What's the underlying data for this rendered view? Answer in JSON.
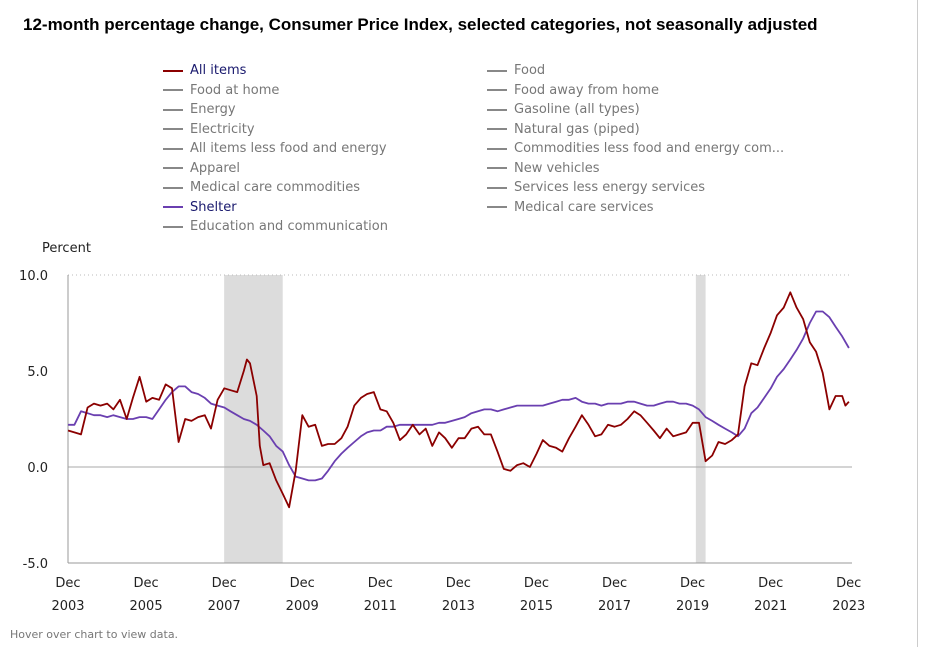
{
  "title": "12-month percentage change, Consumer Price Index, selected categories, not seasonally adjusted",
  "footer": "Hover over chart to view data.",
  "colors": {
    "all_items": "#8b0000",
    "shelter": "#6a3fb0",
    "inactive": "#888888",
    "recession": "#dcdcdc"
  },
  "legend": {
    "left": [
      {
        "label": "All items",
        "active": true,
        "color": "#8b0000"
      },
      {
        "label": "Food at home",
        "active": false
      },
      {
        "label": "Energy",
        "active": false
      },
      {
        "label": "Electricity",
        "active": false
      },
      {
        "label": "All items less food and energy",
        "active": false
      },
      {
        "label": "Apparel",
        "active": false
      },
      {
        "label": "Medical care commodities",
        "active": false
      },
      {
        "label": "Shelter",
        "active": true,
        "color": "#6a3fb0"
      },
      {
        "label": "Education and communication",
        "active": false
      }
    ],
    "right": [
      {
        "label": "Food",
        "active": false
      },
      {
        "label": "Food away from home",
        "active": false
      },
      {
        "label": "Gasoline (all types)",
        "active": false
      },
      {
        "label": "Natural gas (piped)",
        "active": false
      },
      {
        "label": "Commodities less food and energy com...",
        "active": false
      },
      {
        "label": "New vehicles",
        "active": false
      },
      {
        "label": "Services less energy services",
        "active": false
      },
      {
        "label": "Medical care services",
        "active": false
      }
    ]
  },
  "chart_data": {
    "type": "line",
    "title": "12-month percentage change, Consumer Price Index, selected categories, not seasonally adjusted",
    "ylabel": "Percent",
    "ylim": [
      -5.0,
      10.0
    ],
    "yticks": [
      "10.0",
      "5.0",
      "0.0",
      "-5.0"
    ],
    "xlim": [
      2003.917,
      2024.0
    ],
    "xticks": [
      {
        "month": "Dec",
        "year": "2003"
      },
      {
        "month": "Dec",
        "year": "2005"
      },
      {
        "month": "Dec",
        "year": "2007"
      },
      {
        "month": "Dec",
        "year": "2009"
      },
      {
        "month": "Dec",
        "year": "2011"
      },
      {
        "month": "Dec",
        "year": "2013"
      },
      {
        "month": "Dec",
        "year": "2015"
      },
      {
        "month": "Dec",
        "year": "2017"
      },
      {
        "month": "Dec",
        "year": "2019"
      },
      {
        "month": "Dec",
        "year": "2021"
      },
      {
        "month": "Dec",
        "year": "2023"
      }
    ],
    "recessions": [
      [
        2007.917,
        2009.417
      ],
      [
        2020.0,
        2020.25
      ]
    ],
    "series": [
      {
        "name": "All items",
        "color": "#8b0000",
        "points": [
          [
            2003.92,
            1.9
          ],
          [
            2004.08,
            1.8
          ],
          [
            2004.25,
            1.7
          ],
          [
            2004.42,
            3.1
          ],
          [
            2004.58,
            3.3
          ],
          [
            2004.75,
            3.2
          ],
          [
            2004.92,
            3.3
          ],
          [
            2005.08,
            3.0
          ],
          [
            2005.25,
            3.5
          ],
          [
            2005.42,
            2.5
          ],
          [
            2005.58,
            3.6
          ],
          [
            2005.75,
            4.7
          ],
          [
            2005.92,
            3.4
          ],
          [
            2006.08,
            3.6
          ],
          [
            2006.25,
            3.5
          ],
          [
            2006.42,
            4.3
          ],
          [
            2006.58,
            4.1
          ],
          [
            2006.75,
            1.3
          ],
          [
            2006.92,
            2.5
          ],
          [
            2007.08,
            2.4
          ],
          [
            2007.25,
            2.6
          ],
          [
            2007.42,
            2.7
          ],
          [
            2007.58,
            2.0
          ],
          [
            2007.75,
            3.5
          ],
          [
            2007.92,
            4.1
          ],
          [
            2008.08,
            4.0
          ],
          [
            2008.25,
            3.9
          ],
          [
            2008.42,
            5.0
          ],
          [
            2008.5,
            5.6
          ],
          [
            2008.58,
            5.4
          ],
          [
            2008.75,
            3.7
          ],
          [
            2008.83,
            1.1
          ],
          [
            2008.92,
            0.1
          ],
          [
            2009.08,
            0.2
          ],
          [
            2009.25,
            -0.7
          ],
          [
            2009.42,
            -1.4
          ],
          [
            2009.58,
            -2.1
          ],
          [
            2009.75,
            -0.2
          ],
          [
            2009.92,
            2.7
          ],
          [
            2010.08,
            2.1
          ],
          [
            2010.25,
            2.2
          ],
          [
            2010.42,
            1.1
          ],
          [
            2010.58,
            1.2
          ],
          [
            2010.75,
            1.2
          ],
          [
            2010.92,
            1.5
          ],
          [
            2011.08,
            2.1
          ],
          [
            2011.25,
            3.2
          ],
          [
            2011.42,
            3.6
          ],
          [
            2011.58,
            3.8
          ],
          [
            2011.75,
            3.9
          ],
          [
            2011.92,
            3.0
          ],
          [
            2012.08,
            2.9
          ],
          [
            2012.25,
            2.3
          ],
          [
            2012.42,
            1.4
          ],
          [
            2012.58,
            1.7
          ],
          [
            2012.75,
            2.2
          ],
          [
            2012.92,
            1.7
          ],
          [
            2013.08,
            2.0
          ],
          [
            2013.25,
            1.1
          ],
          [
            2013.42,
            1.8
          ],
          [
            2013.58,
            1.5
          ],
          [
            2013.75,
            1.0
          ],
          [
            2013.92,
            1.5
          ],
          [
            2014.08,
            1.5
          ],
          [
            2014.25,
            2.0
          ],
          [
            2014.42,
            2.1
          ],
          [
            2014.58,
            1.7
          ],
          [
            2014.75,
            1.7
          ],
          [
            2014.92,
            0.8
          ],
          [
            2015.08,
            -0.1
          ],
          [
            2015.25,
            -0.2
          ],
          [
            2015.42,
            0.1
          ],
          [
            2015.58,
            0.2
          ],
          [
            2015.75,
            0.0
          ],
          [
            2015.92,
            0.7
          ],
          [
            2016.08,
            1.4
          ],
          [
            2016.25,
            1.1
          ],
          [
            2016.42,
            1.0
          ],
          [
            2016.58,
            0.8
          ],
          [
            2016.75,
            1.5
          ],
          [
            2016.92,
            2.1
          ],
          [
            2017.08,
            2.7
          ],
          [
            2017.25,
            2.2
          ],
          [
            2017.42,
            1.6
          ],
          [
            2017.58,
            1.7
          ],
          [
            2017.75,
            2.2
          ],
          [
            2017.92,
            2.1
          ],
          [
            2018.08,
            2.2
          ],
          [
            2018.25,
            2.5
          ],
          [
            2018.42,
            2.9
          ],
          [
            2018.58,
            2.7
          ],
          [
            2018.75,
            2.3
          ],
          [
            2018.92,
            1.9
          ],
          [
            2019.08,
            1.5
          ],
          [
            2019.25,
            2.0
          ],
          [
            2019.42,
            1.6
          ],
          [
            2019.58,
            1.7
          ],
          [
            2019.75,
            1.8
          ],
          [
            2019.92,
            2.3
          ],
          [
            2020.08,
            2.3
          ],
          [
            2020.25,
            0.3
          ],
          [
            2020.42,
            0.6
          ],
          [
            2020.58,
            1.3
          ],
          [
            2020.75,
            1.2
          ],
          [
            2020.92,
            1.4
          ],
          [
            2021.08,
            1.7
          ],
          [
            2021.25,
            4.2
          ],
          [
            2021.42,
            5.4
          ],
          [
            2021.58,
            5.3
          ],
          [
            2021.75,
            6.2
          ],
          [
            2021.92,
            7.0
          ],
          [
            2022.08,
            7.9
          ],
          [
            2022.25,
            8.3
          ],
          [
            2022.42,
            9.1
          ],
          [
            2022.58,
            8.3
          ],
          [
            2022.75,
            7.7
          ],
          [
            2022.92,
            6.5
          ],
          [
            2023.08,
            6.0
          ],
          [
            2023.25,
            4.9
          ],
          [
            2023.42,
            3.0
          ],
          [
            2023.58,
            3.7
          ],
          [
            2023.75,
            3.7
          ],
          [
            2023.83,
            3.2
          ],
          [
            2023.92,
            3.4
          ]
        ]
      },
      {
        "name": "Shelter",
        "color": "#6a3fb0",
        "points": [
          [
            2003.92,
            2.2
          ],
          [
            2004.08,
            2.2
          ],
          [
            2004.25,
            2.9
          ],
          [
            2004.42,
            2.8
          ],
          [
            2004.58,
            2.7
          ],
          [
            2004.75,
            2.7
          ],
          [
            2004.92,
            2.6
          ],
          [
            2005.08,
            2.7
          ],
          [
            2005.25,
            2.6
          ],
          [
            2005.42,
            2.5
          ],
          [
            2005.58,
            2.5
          ],
          [
            2005.75,
            2.6
          ],
          [
            2005.92,
            2.6
          ],
          [
            2006.08,
            2.5
          ],
          [
            2006.25,
            3.0
          ],
          [
            2006.42,
            3.5
          ],
          [
            2006.58,
            3.9
          ],
          [
            2006.75,
            4.2
          ],
          [
            2006.92,
            4.2
          ],
          [
            2007.08,
            3.9
          ],
          [
            2007.25,
            3.8
          ],
          [
            2007.42,
            3.6
          ],
          [
            2007.58,
            3.3
          ],
          [
            2007.75,
            3.2
          ],
          [
            2007.92,
            3.1
          ],
          [
            2008.08,
            2.9
          ],
          [
            2008.25,
            2.7
          ],
          [
            2008.42,
            2.5
          ],
          [
            2008.58,
            2.4
          ],
          [
            2008.75,
            2.2
          ],
          [
            2008.92,
            1.9
          ],
          [
            2009.08,
            1.6
          ],
          [
            2009.25,
            1.1
          ],
          [
            2009.42,
            0.8
          ],
          [
            2009.58,
            0.1
          ],
          [
            2009.75,
            -0.5
          ],
          [
            2009.92,
            -0.6
          ],
          [
            2010.08,
            -0.7
          ],
          [
            2010.25,
            -0.7
          ],
          [
            2010.42,
            -0.6
          ],
          [
            2010.58,
            -0.2
          ],
          [
            2010.75,
            0.3
          ],
          [
            2010.92,
            0.7
          ],
          [
            2011.08,
            1.0
          ],
          [
            2011.25,
            1.3
          ],
          [
            2011.42,
            1.6
          ],
          [
            2011.58,
            1.8
          ],
          [
            2011.75,
            1.9
          ],
          [
            2011.92,
            1.9
          ],
          [
            2012.08,
            2.1
          ],
          [
            2012.25,
            2.1
          ],
          [
            2012.42,
            2.2
          ],
          [
            2012.58,
            2.2
          ],
          [
            2012.75,
            2.2
          ],
          [
            2012.92,
            2.2
          ],
          [
            2013.08,
            2.2
          ],
          [
            2013.25,
            2.2
          ],
          [
            2013.42,
            2.3
          ],
          [
            2013.58,
            2.3
          ],
          [
            2013.75,
            2.4
          ],
          [
            2013.92,
            2.5
          ],
          [
            2014.08,
            2.6
          ],
          [
            2014.25,
            2.8
          ],
          [
            2014.42,
            2.9
          ],
          [
            2014.58,
            3.0
          ],
          [
            2014.75,
            3.0
          ],
          [
            2014.92,
            2.9
          ],
          [
            2015.08,
            3.0
          ],
          [
            2015.25,
            3.1
          ],
          [
            2015.42,
            3.2
          ],
          [
            2015.58,
            3.2
          ],
          [
            2015.75,
            3.2
          ],
          [
            2015.92,
            3.2
          ],
          [
            2016.08,
            3.2
          ],
          [
            2016.25,
            3.3
          ],
          [
            2016.42,
            3.4
          ],
          [
            2016.58,
            3.5
          ],
          [
            2016.75,
            3.5
          ],
          [
            2016.92,
            3.6
          ],
          [
            2017.08,
            3.4
          ],
          [
            2017.25,
            3.3
          ],
          [
            2017.42,
            3.3
          ],
          [
            2017.58,
            3.2
          ],
          [
            2017.75,
            3.3
          ],
          [
            2017.92,
            3.3
          ],
          [
            2018.08,
            3.3
          ],
          [
            2018.25,
            3.4
          ],
          [
            2018.42,
            3.4
          ],
          [
            2018.58,
            3.3
          ],
          [
            2018.75,
            3.2
          ],
          [
            2018.92,
            3.2
          ],
          [
            2019.08,
            3.3
          ],
          [
            2019.25,
            3.4
          ],
          [
            2019.42,
            3.4
          ],
          [
            2019.58,
            3.3
          ],
          [
            2019.75,
            3.3
          ],
          [
            2019.92,
            3.2
          ],
          [
            2020.08,
            3.0
          ],
          [
            2020.25,
            2.6
          ],
          [
            2020.42,
            2.4
          ],
          [
            2020.58,
            2.2
          ],
          [
            2020.75,
            2.0
          ],
          [
            2020.92,
            1.8
          ],
          [
            2021.08,
            1.6
          ],
          [
            2021.25,
            2.0
          ],
          [
            2021.42,
            2.8
          ],
          [
            2021.58,
            3.1
          ],
          [
            2021.75,
            3.6
          ],
          [
            2021.92,
            4.1
          ],
          [
            2022.08,
            4.7
          ],
          [
            2022.25,
            5.1
          ],
          [
            2022.42,
            5.6
          ],
          [
            2022.58,
            6.1
          ],
          [
            2022.75,
            6.7
          ],
          [
            2022.92,
            7.5
          ],
          [
            2023.08,
            8.1
          ],
          [
            2023.25,
            8.1
          ],
          [
            2023.42,
            7.8
          ],
          [
            2023.58,
            7.3
          ],
          [
            2023.75,
            6.8
          ],
          [
            2023.92,
            6.2
          ]
        ]
      }
    ]
  }
}
